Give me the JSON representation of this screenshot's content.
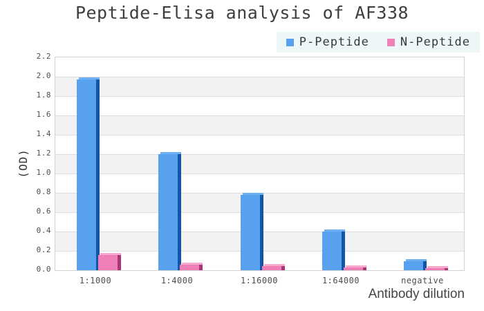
{
  "chart_data": {
    "type": "bar",
    "title": "Peptide-Elisa analysis of AF338",
    "xlabel": "Antibody dilution",
    "ylabel": "(OD)",
    "categories": [
      "1:1000",
      "1:4000",
      "1:16000",
      "1:64000",
      "negative"
    ],
    "series": [
      {
        "name": "P-Peptide",
        "values": [
          1.97,
          1.2,
          0.78,
          0.4,
          0.09
        ],
        "color_front": "#58a1ef",
        "color_side": "#1356a8",
        "color_top": "#6fb0f4"
      },
      {
        "name": "N-Peptide",
        "values": [
          0.16,
          0.06,
          0.04,
          0.03,
          0.02
        ],
        "color_front": "#ee7fb7",
        "color_side": "#aa3578",
        "color_top": "#f6aace"
      }
    ],
    "ylim": [
      0,
      2.2
    ],
    "y_tick_step": 0.2,
    "grid": true,
    "legend_position": "top-right",
    "plot_style": {
      "band_color": "#f2f2f2",
      "grid_color": "#dddddd",
      "border_color": "#d2d2d2",
      "legend_bg": "#eef7f7"
    }
  }
}
